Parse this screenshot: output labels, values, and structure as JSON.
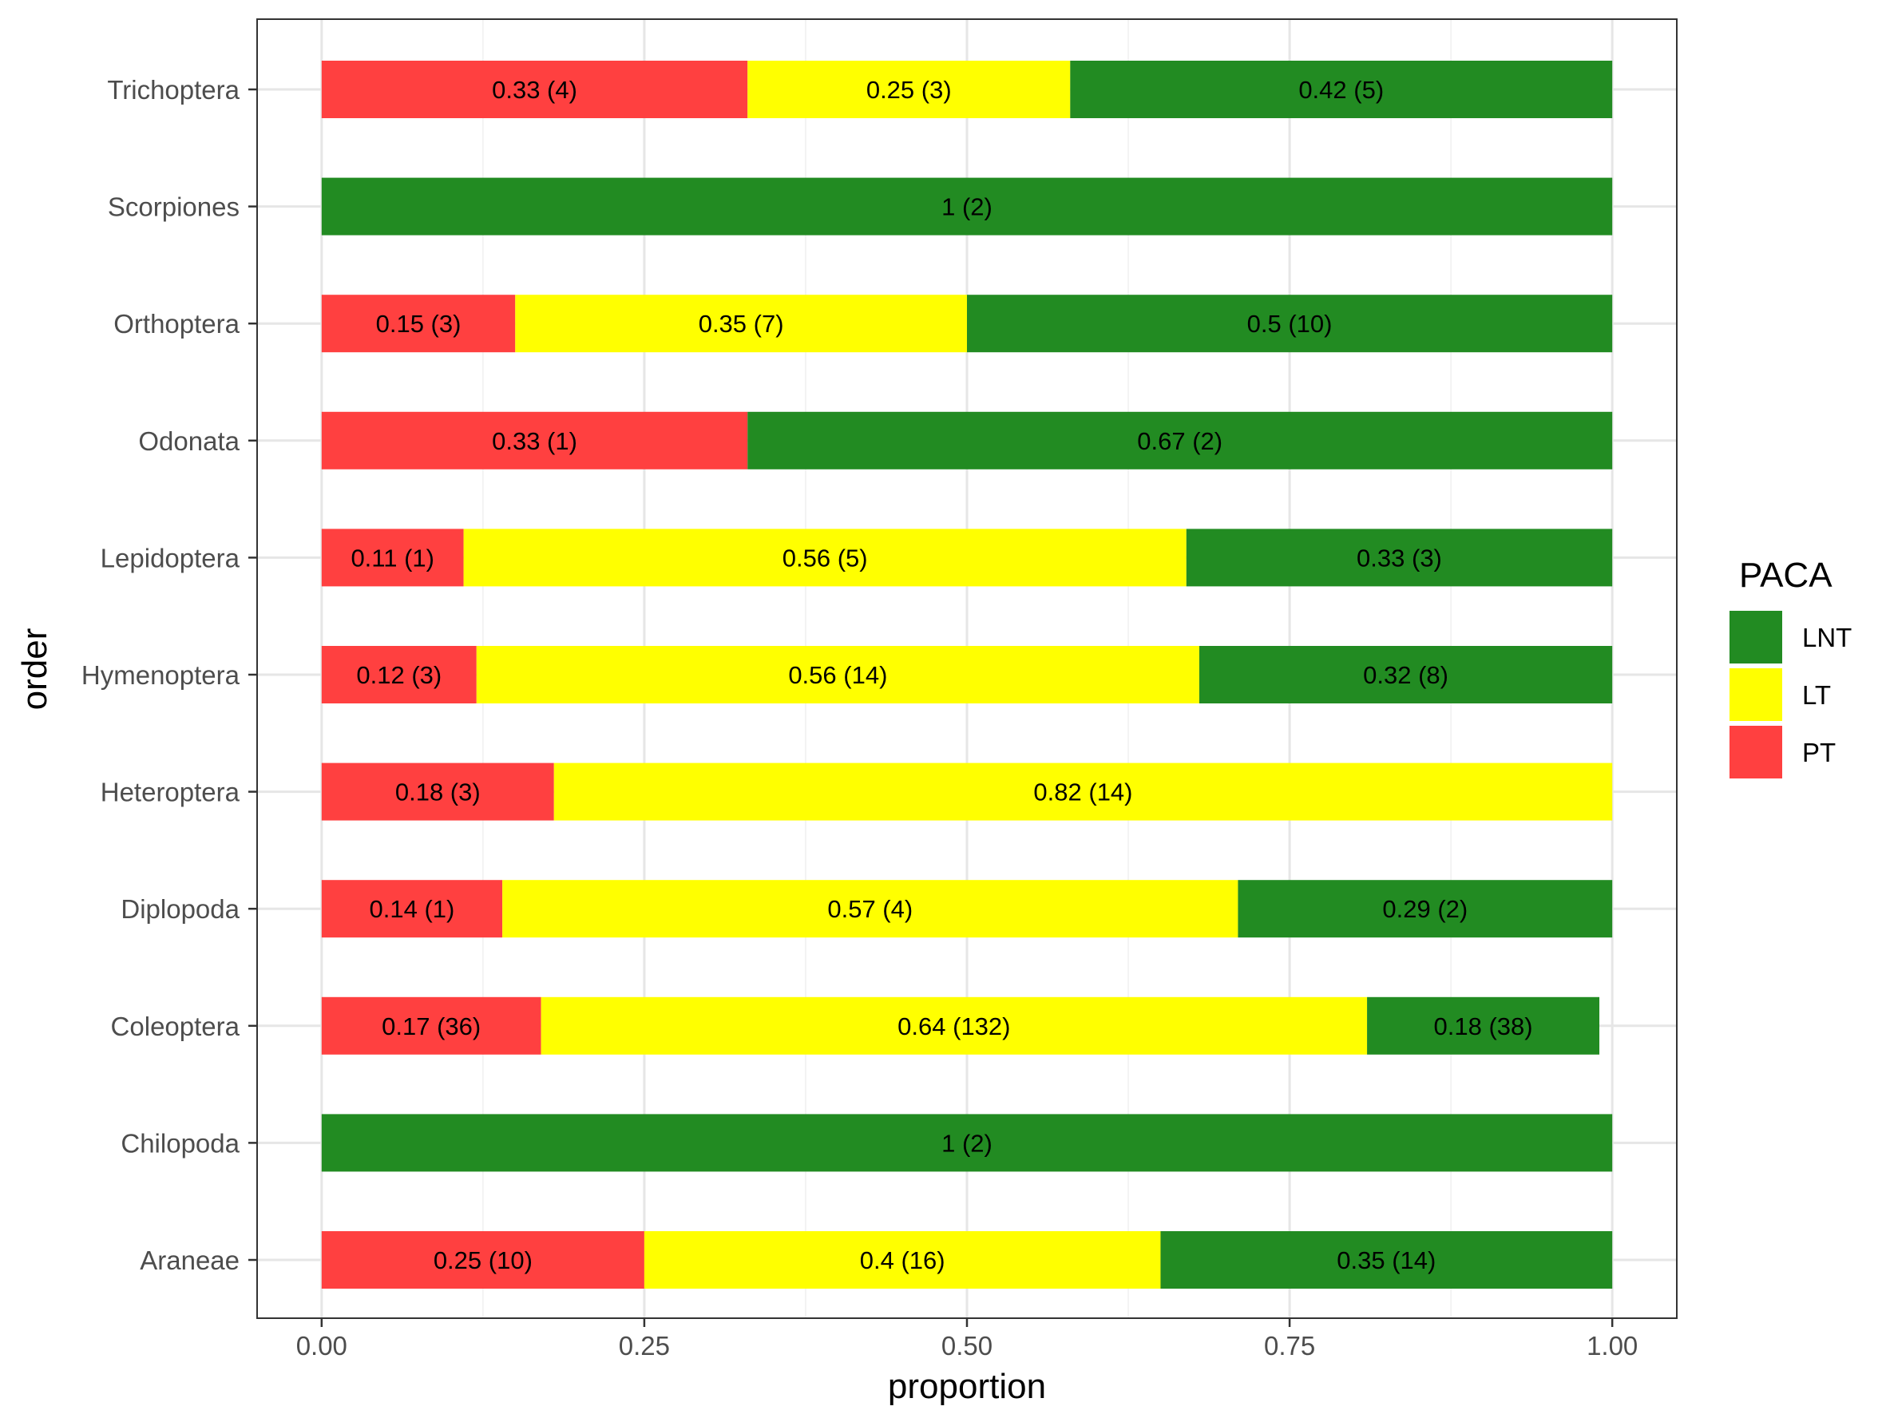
{
  "chart_data": {
    "type": "bar",
    "orientation": "horizontal",
    "stacked": true,
    "title": "",
    "xlabel": "proportion",
    "ylabel": "order",
    "xlim": [
      -0.05,
      1.05
    ],
    "x_ticks": [
      0.0,
      0.25,
      0.5,
      0.75,
      1.0
    ],
    "x_tick_labels": [
      "0.00",
      "0.25",
      "0.50",
      "0.75",
      "1.00"
    ],
    "grid": true,
    "legend": {
      "title": "PACA",
      "placement": "right",
      "entries": [
        "LNT",
        "LT",
        "PT"
      ]
    },
    "colors": {
      "PT": "#FF4040",
      "LT": "#FFFF00",
      "LNT": "#228B22"
    },
    "categories": [
      "Araneae",
      "Chilopoda",
      "Coleoptera",
      "Diplopoda",
      "Heteroptera",
      "Hymenoptera",
      "Lepidoptera",
      "Odonata",
      "Orthoptera",
      "Scorpiones",
      "Trichoptera"
    ],
    "series": [
      {
        "name": "PT",
        "values": [
          0.25,
          null,
          0.17,
          0.14,
          0.18,
          0.12,
          0.11,
          0.33,
          0.15,
          null,
          0.33
        ],
        "labels": [
          "0.25 (10)",
          "",
          "0.17 (36)",
          "0.14 (1)",
          "0.18 (3)",
          "0.12 (3)",
          "0.11 (1)",
          "0.33 (1)",
          "0.15 (3)",
          "",
          "0.33 (4)"
        ]
      },
      {
        "name": "LT",
        "values": [
          0.4,
          null,
          0.64,
          0.57,
          0.82,
          0.56,
          0.56,
          null,
          0.35,
          null,
          0.25
        ],
        "labels": [
          "0.4 (16)",
          "",
          "0.64 (132)",
          "0.57 (4)",
          "0.82 (14)",
          "0.56 (14)",
          "0.56 (5)",
          "",
          "0.35 (7)",
          "",
          "0.25 (3)"
        ]
      },
      {
        "name": "LNT",
        "values": [
          0.35,
          1,
          0.18,
          0.29,
          null,
          0.32,
          0.33,
          0.67,
          0.5,
          1,
          0.42
        ],
        "labels": [
          "0.35 (14)",
          "1 (2)",
          "0.18 (38)",
          "0.29 (2)",
          "",
          "0.32 (8)",
          "0.33 (3)",
          "0.67 (2)",
          "0.5 (10)",
          "1 (2)",
          "0.42 (5)"
        ]
      }
    ]
  }
}
